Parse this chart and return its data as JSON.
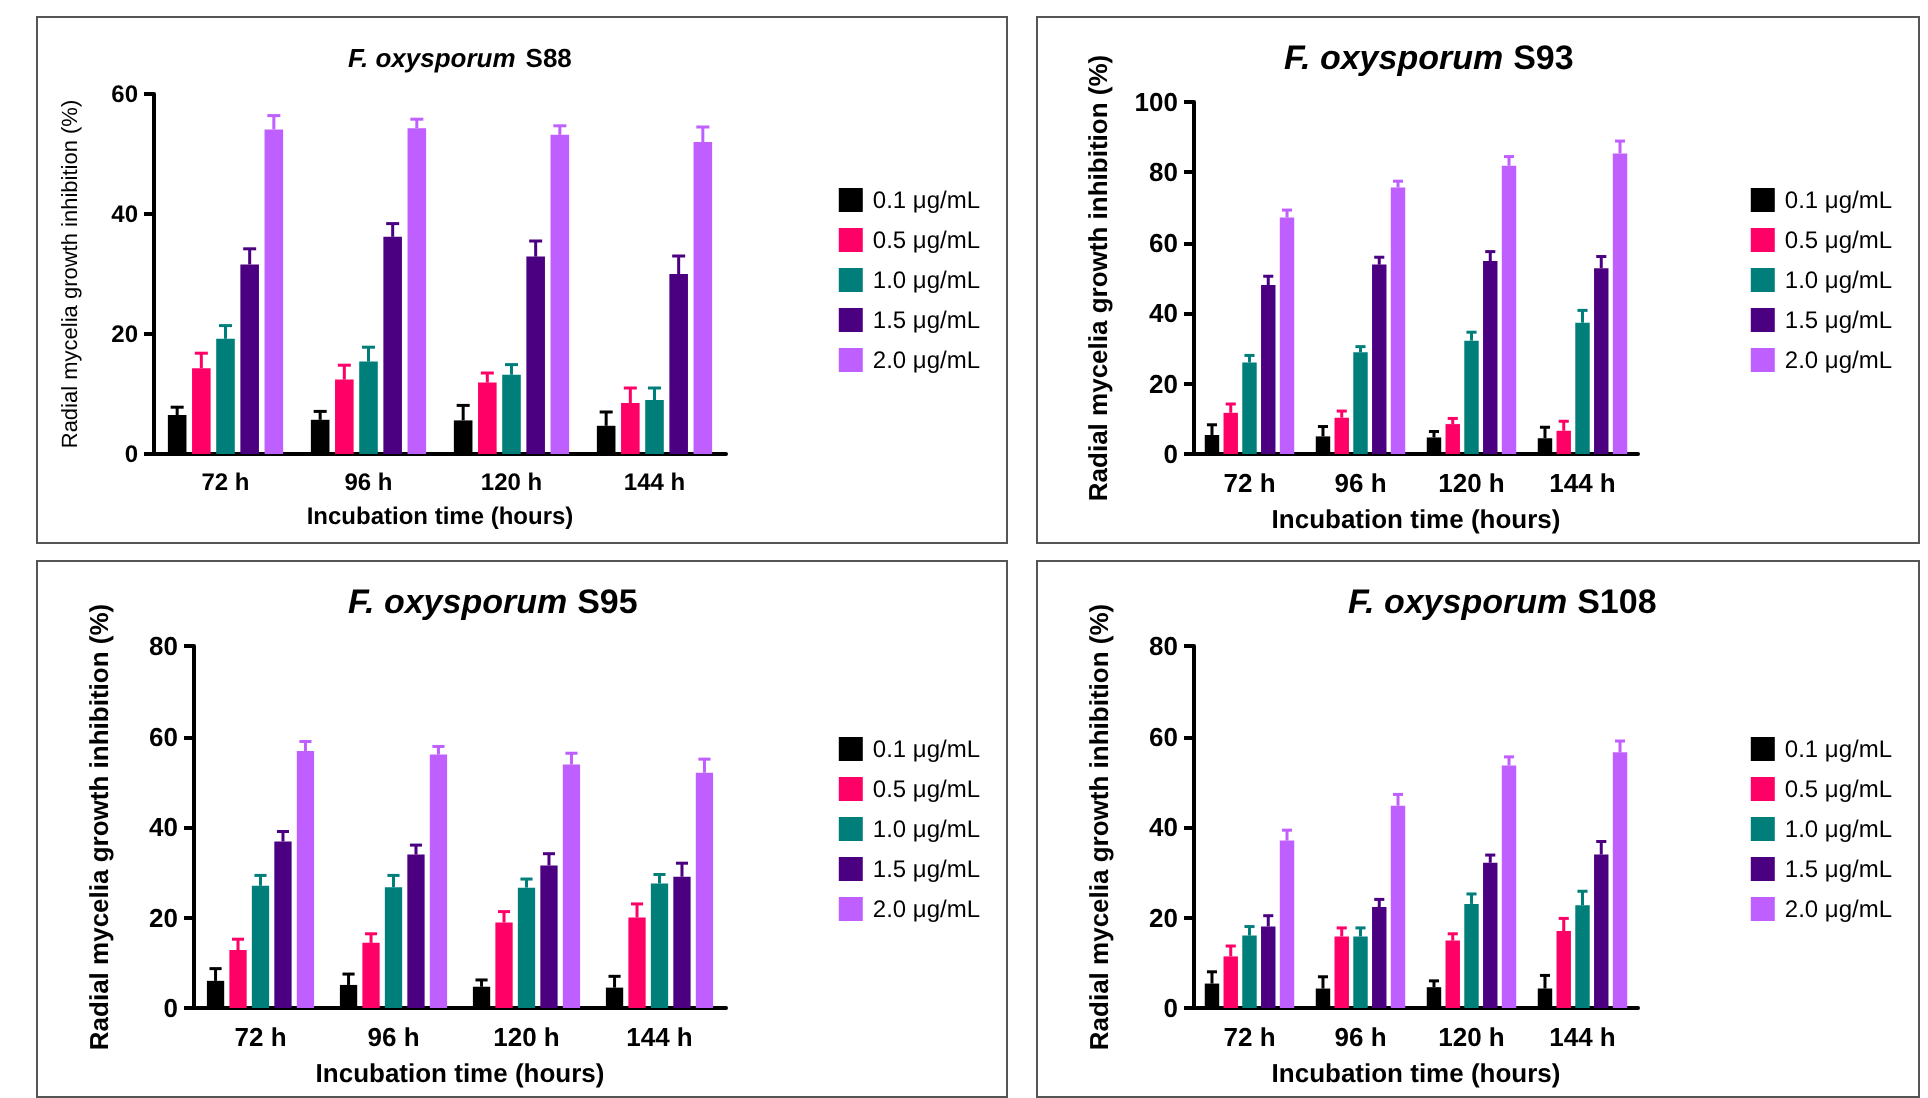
{
  "chart_data": [
    {
      "type": "bar",
      "title": "F. oxysporum S88",
      "xlabel": "Incubation time (hours)",
      "ylabel": "Radial mycelia growth inhibition (%)",
      "categories": [
        "72 h",
        "96 h",
        "120 h",
        "144 h"
      ],
      "ylim": [
        0,
        60
      ],
      "yticks": [
        0,
        20,
        40,
        60
      ],
      "legend": "right",
      "series": [
        {
          "name": "0.1 μg/mL",
          "color": "#000000",
          "values": [
            6.5,
            5.7,
            5.6,
            4.7
          ],
          "errors": [
            1.3,
            1.4,
            2.5,
            2.3
          ]
        },
        {
          "name": "0.5 μg/mL",
          "color": "#ff0066",
          "values": [
            14.3,
            12.4,
            11.9,
            8.5
          ],
          "errors": [
            2.5,
            2.4,
            1.6,
            2.5
          ]
        },
        {
          "name": "1.0 μg/mL",
          "color": "#007f7a",
          "values": [
            19.2,
            15.4,
            13.2,
            9
          ],
          "errors": [
            2.2,
            2.4,
            1.7,
            2
          ]
        },
        {
          "name": "1.5 μg/mL",
          "color": "#4b0082",
          "values": [
            31.6,
            36.2,
            32.9,
            30
          ],
          "errors": [
            2.6,
            2.2,
            2.6,
            3
          ]
        },
        {
          "name": "2.0 μg/mL",
          "color": "#bf5fff",
          "values": [
            54.1,
            54.3,
            53.2,
            52
          ],
          "errors": [
            2.3,
            1.5,
            1.5,
            2.5
          ]
        }
      ]
    },
    {
      "type": "bar",
      "title": "F. oxysporum S93",
      "xlabel": "Incubation time (hours)",
      "ylabel": "Radial mycelia growth inhibition (%)",
      "categories": [
        "72 h",
        "96 h",
        "120 h",
        "144 h"
      ],
      "ylim": [
        0,
        100
      ],
      "yticks": [
        0,
        20,
        40,
        60,
        80,
        100
      ],
      "legend": "right",
      "series": [
        {
          "name": "0.1 μg/mL",
          "color": "#000000",
          "values": [
            5.4,
            5,
            4.7,
            4.5
          ],
          "errors": [
            2.9,
            2.8,
            1.7,
            3.1
          ]
        },
        {
          "name": "0.5 μg/mL",
          "color": "#ff0066",
          "values": [
            11.7,
            10.3,
            8.5,
            6.6
          ],
          "errors": [
            2.5,
            1.9,
            1.6,
            2.7
          ]
        },
        {
          "name": "1.0 μg/mL",
          "color": "#007f7a",
          "values": [
            26,
            28.9,
            32.2,
            37.3
          ],
          "errors": [
            2,
            1.6,
            2.4,
            3.5
          ]
        },
        {
          "name": "1.5 μg/mL",
          "color": "#4b0082",
          "values": [
            48,
            53.8,
            54.8,
            52.8
          ],
          "errors": [
            2.5,
            2.1,
            2.7,
            3.3
          ]
        },
        {
          "name": "2.0 μg/mL",
          "color": "#bf5fff",
          "values": [
            67.2,
            75.7,
            81.9,
            85.4
          ],
          "errors": [
            2.1,
            1.8,
            2.6,
            3.5
          ]
        }
      ]
    },
    {
      "type": "bar",
      "title": "F. oxysporum S95",
      "xlabel": "Incubation time (hours)",
      "ylabel": "Radial mycelia growth inhibition (%)",
      "categories": [
        "72 h",
        "96 h",
        "120 h",
        "144 h"
      ],
      "ylim": [
        0,
        80
      ],
      "yticks": [
        0,
        20,
        40,
        60,
        80
      ],
      "legend": "right",
      "series": [
        {
          "name": "0.1 μg/mL",
          "color": "#000000",
          "values": [
            6,
            5.1,
            4.7,
            4.5
          ],
          "errors": [
            2.7,
            2.4,
            1.5,
            2.5
          ]
        },
        {
          "name": "0.5 μg/mL",
          "color": "#ff0066",
          "values": [
            12.8,
            14.4,
            18.9,
            20
          ],
          "errors": [
            2.4,
            2,
            2.4,
            3
          ]
        },
        {
          "name": "1.0 μg/mL",
          "color": "#007f7a",
          "values": [
            27,
            26.7,
            26.6,
            27.5
          ],
          "errors": [
            2.3,
            2.6,
            1.9,
            2
          ]
        },
        {
          "name": "1.5 μg/mL",
          "color": "#4b0082",
          "values": [
            36.8,
            33.9,
            31.5,
            29
          ],
          "errors": [
            2.2,
            2.1,
            2.6,
            3
          ]
        },
        {
          "name": "2.0 μg/mL",
          "color": "#bf5fff",
          "values": [
            56.8,
            56,
            53.8,
            52
          ],
          "errors": [
            2.1,
            1.8,
            2.5,
            3
          ]
        }
      ]
    },
    {
      "type": "bar",
      "title": "F. oxysporum S108",
      "xlabel": "Incubation time (hours)",
      "ylabel": "Radial mycelia growth inhibition (%)",
      "categories": [
        "72 h",
        "96 h",
        "120 h",
        "144 h"
      ],
      "ylim": [
        0,
        80
      ],
      "yticks": [
        0,
        20,
        40,
        60,
        80
      ],
      "legend": "right",
      "series": [
        {
          "name": "0.1 μg/mL",
          "color": "#000000",
          "values": [
            5.4,
            4.3,
            4.6,
            4.3
          ],
          "errors": [
            2.6,
            2.6,
            1.4,
            2.9
          ]
        },
        {
          "name": "0.5 μg/mL",
          "color": "#ff0066",
          "values": [
            11.4,
            15.8,
            14.9,
            17
          ],
          "errors": [
            2.3,
            1.9,
            1.5,
            2.8
          ]
        },
        {
          "name": "1.0 μg/mL",
          "color": "#007f7a",
          "values": [
            16,
            15.8,
            23,
            22.7
          ],
          "errors": [
            2,
            1.9,
            2.2,
            3.1
          ]
        },
        {
          "name": "1.5 μg/mL",
          "color": "#4b0082",
          "values": [
            18,
            22.3,
            32.1,
            33.9
          ],
          "errors": [
            2.4,
            1.7,
            1.7,
            2.9
          ]
        },
        {
          "name": "2.0 μg/mL",
          "color": "#bf5fff",
          "values": [
            37,
            44.7,
            53.6,
            56.5
          ],
          "errors": [
            2.3,
            2.5,
            1.9,
            2.5
          ]
        }
      ]
    }
  ]
}
